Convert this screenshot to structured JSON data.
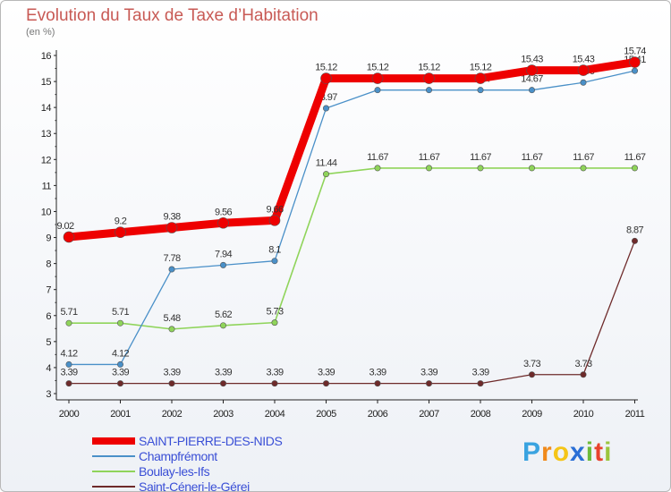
{
  "title": "Evolution du Taux de Taxe d’Habitation",
  "unit": "(en %)",
  "logo": {
    "chars": [
      "P",
      "r",
      "o",
      "x",
      "i",
      "t",
      "i"
    ],
    "colors": [
      "#3aa3e0",
      "#f08a1c",
      "#f5c518",
      "#2b6fd6",
      "#6dbb3a",
      "#e8432e",
      "#9bc53d"
    ]
  },
  "chart_data": {
    "type": "line",
    "categories": [
      "2000",
      "2001",
      "2002",
      "2003",
      "2004",
      "2005",
      "2006",
      "2007",
      "2008",
      "2009",
      "2010",
      "2011"
    ],
    "ylim": [
      3,
      16
    ],
    "yticks": [
      "3",
      "4",
      "5",
      "6",
      "7",
      "8",
      "9",
      "10",
      "11",
      "12",
      "13",
      "14",
      "15",
      "16"
    ],
    "grid": false,
    "legend": "bottom-left",
    "series": [
      {
        "name": "Saint-Céneri-le-Gérei",
        "color": "#6e2a2a",
        "values": [
          3.39,
          3.39,
          3.39,
          3.39,
          3.39,
          3.39,
          3.39,
          3.39,
          3.39,
          3.73,
          3.73,
          8.87
        ],
        "labels": [
          "3.39",
          "3.39",
          "3.39",
          "3.39",
          "3.39",
          "3.39",
          "3.39",
          "3.39",
          "3.39",
          "3.73",
          "3.73",
          "8.87"
        ]
      },
      {
        "name": "Boulay-les-Ifs",
        "color": "#8fd45a",
        "values": [
          5.71,
          5.71,
          5.48,
          5.62,
          5.73,
          11.44,
          11.67,
          11.67,
          11.67,
          11.67,
          11.67,
          11.67
        ],
        "labels": [
          "5.71",
          "5.71",
          "5.48",
          "5.62",
          "5.73",
          "11.44",
          "11.67",
          "11.67",
          "11.67",
          "11.67",
          "11.67",
          "11.67"
        ]
      },
      {
        "name": "Champfrémont",
        "color": "#4a90c8",
        "values": [
          4.12,
          4.12,
          7.78,
          7.94,
          8.1,
          13.97,
          14.67,
          14.67,
          14.67,
          14.67,
          14.96,
          15.41
        ],
        "labels": [
          "4.12",
          "4.12",
          "7.78",
          "7.94",
          "8.1",
          "13.97",
          "14.67",
          "14.67",
          "14.67",
          "14.67",
          "14.96",
          "15.41"
        ]
      },
      {
        "name": "SAINT-PIERRE-DES-NIDS",
        "color": "#ee0000",
        "values": [
          9.02,
          9.2,
          9.38,
          9.56,
          9.66,
          15.12,
          15.12,
          15.12,
          15.12,
          15.43,
          15.43,
          15.74
        ],
        "labels": [
          "9.02",
          "9.2",
          "9.38",
          "9.56",
          "9.66",
          "15.12",
          "15.12",
          "15.12",
          "15.12",
          "15.43",
          "15.43",
          "15.74"
        ]
      }
    ]
  }
}
